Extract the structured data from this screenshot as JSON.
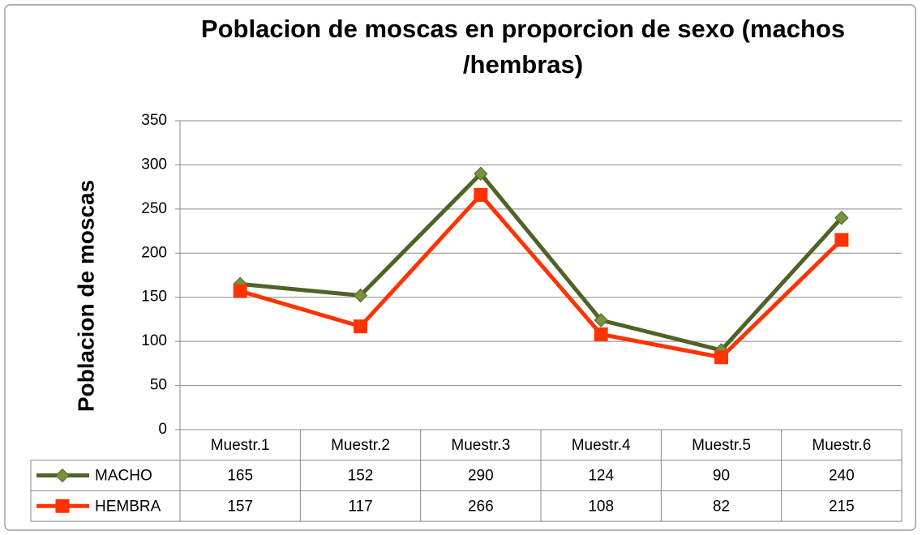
{
  "chart_data": {
    "type": "line",
    "title": "Poblacion de moscas en proporcion de sexo (machos /hembras)",
    "y_label": "Poblacion  de moscas",
    "categories": [
      "Muestr.1",
      "Muestr.2",
      "Muestr.3",
      "Muestr.4",
      "Muestr.5",
      "Muestr.6"
    ],
    "series": [
      {
        "name": "MACHO",
        "color": "#4f6228",
        "marker_color": "#77933c",
        "marker": "diamond",
        "values": [
          165,
          152,
          290,
          124,
          90,
          240
        ]
      },
      {
        "name": "HEMBRA",
        "color": "#ff3300",
        "marker_color": "#ff3300",
        "marker": "square",
        "values": [
          157,
          117,
          266,
          108,
          82,
          215
        ]
      }
    ],
    "ylim": [
      0,
      350
    ],
    "yticks": [
      0,
      50,
      100,
      150,
      200,
      250,
      300,
      350
    ],
    "grid": true,
    "data_table": true
  }
}
